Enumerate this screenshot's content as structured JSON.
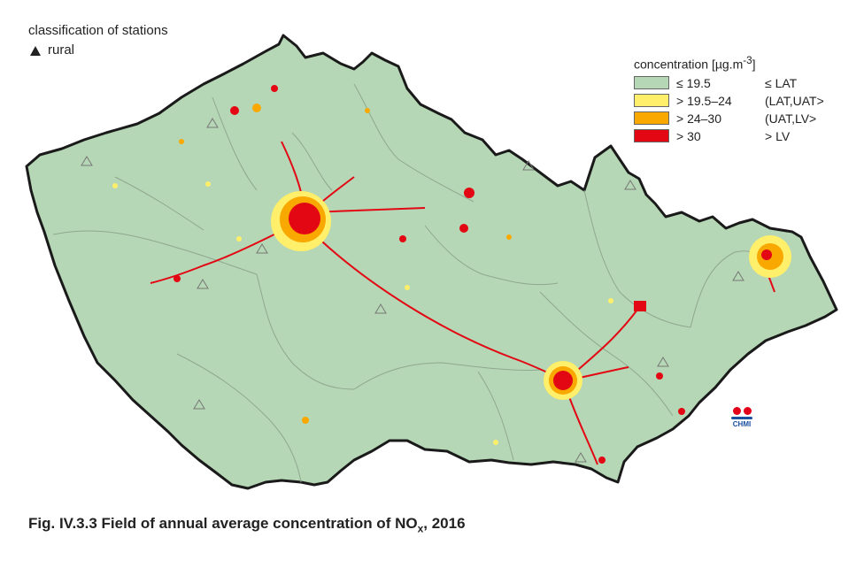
{
  "stations_legend": {
    "title": "classification of stations",
    "rural_label": "rural"
  },
  "concentration_legend": {
    "title": "concentration [µg.m",
    "title_sup": "-3",
    "title_end": "]",
    "items": [
      {
        "range": "≤ 19.5",
        "class": "≤ LAT",
        "color": "#b5d7b5"
      },
      {
        "range": "> 19.5–24",
        "class": "(LAT,UAT>",
        "color": "#ffef6a"
      },
      {
        "range": "> 24–30",
        "class": "(UAT,LV>",
        "color": "#f9a800"
      },
      {
        "range": "> 30",
        "class": "> LV",
        "color": "#e30613"
      }
    ]
  },
  "logo": {
    "text": "CHMI"
  },
  "caption": {
    "prefix": "Fig. IV.3.3  Field of annual average concentration of NO",
    "sub": "x",
    "suffix": ", 2016"
  },
  "colors": {
    "background_class": "#b5d7b5",
    "border": "#1a1a1a",
    "region_lines": "#8fa78f"
  }
}
